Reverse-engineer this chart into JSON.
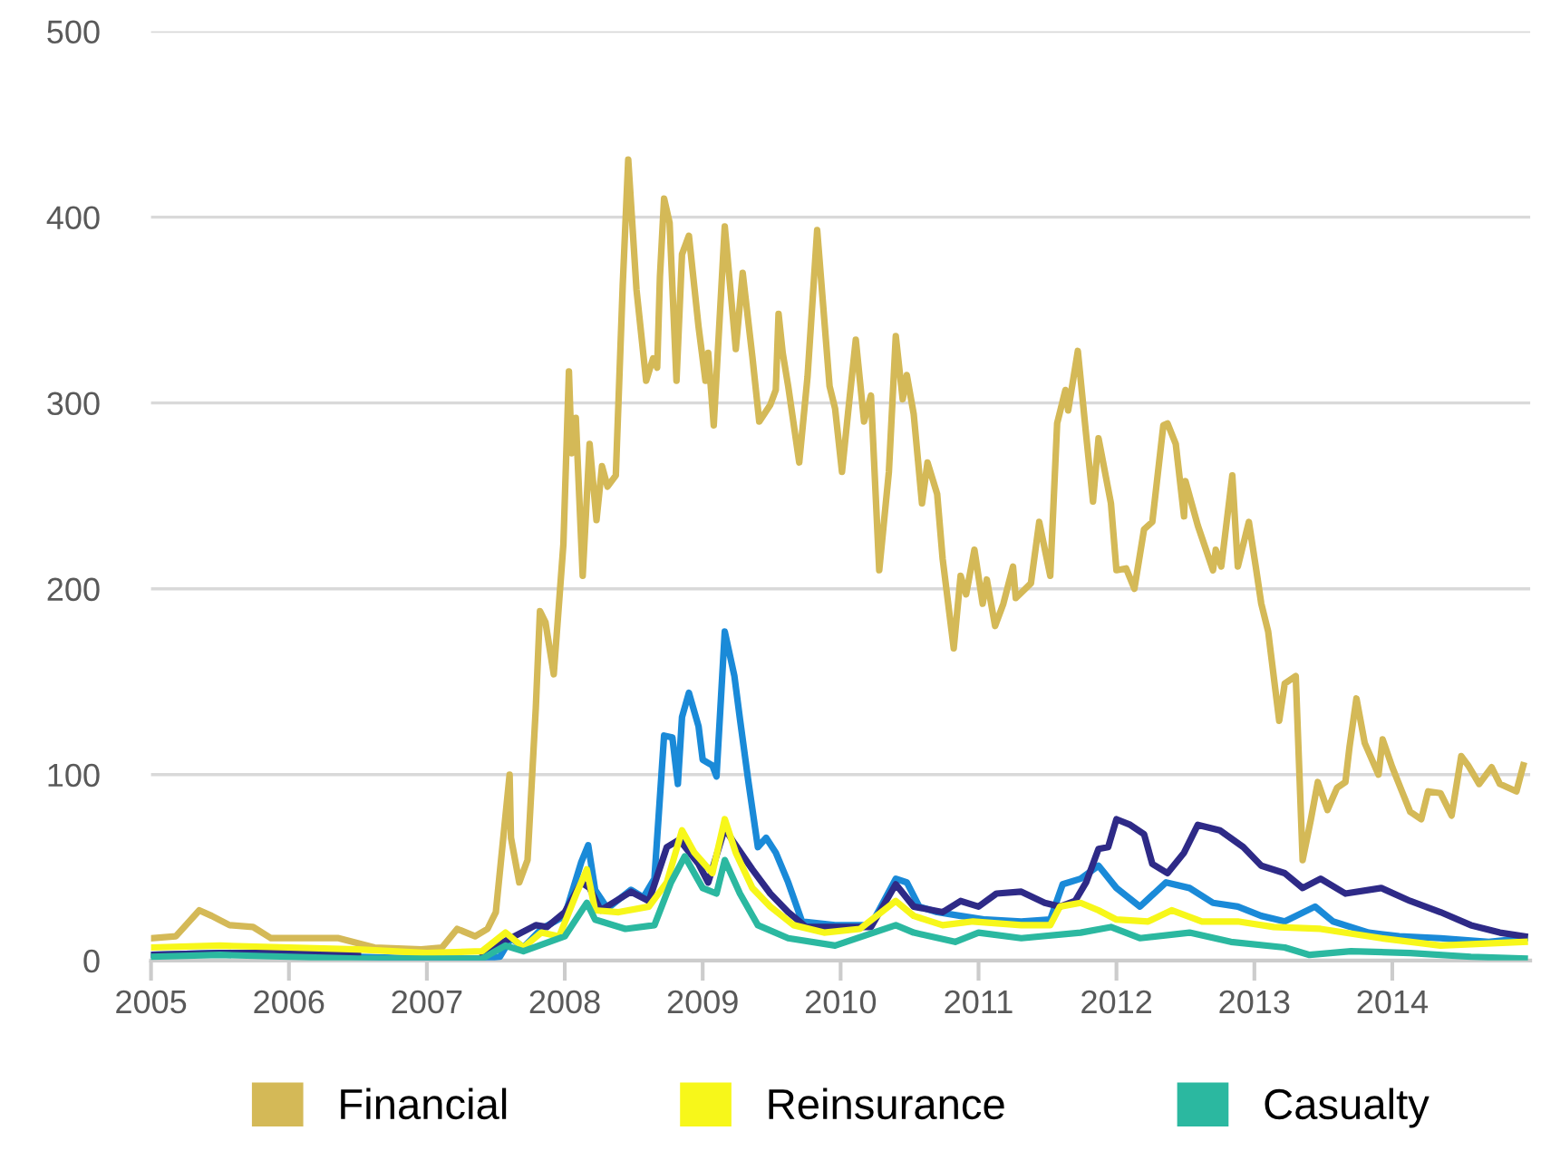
{
  "chart_data": {
    "type": "line",
    "xlim": [
      2005,
      2015
    ],
    "xticks": [
      2005,
      2006,
      2007,
      2008,
      2009,
      2010,
      2011,
      2012,
      2013,
      2014
    ],
    "ylim": [
      0,
      500
    ],
    "yticks": [
      0,
      100,
      200,
      300,
      400,
      500
    ],
    "grid": "y",
    "legend": "bottom",
    "marker": "none",
    "line_style": "solid",
    "series": [
      {
        "color": "#d4b957",
        "name": "Financial",
        "x": [
          2005.0,
          2005.18,
          2005.35,
          2005.44,
          2005.57,
          2005.74,
          2005.87,
          2006.1,
          2006.36,
          2006.62,
          2006.96,
          2007.11,
          2007.22,
          2007.35,
          2007.44,
          2007.5,
          2007.6,
          2007.61,
          2007.67,
          2007.73,
          2007.79,
          2007.82,
          2007.86,
          2007.92,
          2007.99,
          2008.03,
          2008.05,
          2008.08,
          2008.13,
          2008.18,
          2008.23,
          2008.27,
          2008.31,
          2008.37,
          2008.42,
          2008.46,
          2008.52,
          2008.59,
          2008.64,
          2008.67,
          2008.69,
          2008.72,
          2008.76,
          2008.81,
          2008.85,
          2008.9,
          2008.97,
          2009.02,
          2009.04,
          2009.08,
          2009.16,
          2009.24,
          2009.29,
          2009.36,
          2009.41,
          2009.49,
          2009.53,
          2009.55,
          2009.58,
          2009.62,
          2009.7,
          2009.76,
          2009.83,
          2009.92,
          2009.96,
          2010.01,
          2010.06,
          2010.11,
          2010.17,
          2010.22,
          2010.28,
          2010.35,
          2010.4,
          2010.45,
          2010.48,
          2010.53,
          2010.59,
          2010.63,
          2010.7,
          2010.74,
          2010.82,
          2010.87,
          2010.91,
          2010.97,
          2011.03,
          2011.06,
          2011.12,
          2011.18,
          2011.25,
          2011.27,
          2011.38,
          2011.44,
          2011.52,
          2011.57,
          2011.63,
          2011.65,
          2011.72,
          2011.78,
          2011.83,
          2011.87,
          2011.96,
          2012.0,
          2012.07,
          2012.13,
          2012.2,
          2012.26,
          2012.34,
          2012.37,
          2012.43,
          2012.49,
          2012.5,
          2012.59,
          2012.7,
          2012.72,
          2012.76,
          2012.84,
          2012.88,
          2012.96,
          2013.01,
          2013.05,
          2013.1,
          2013.18,
          2013.22,
          2013.3,
          2013.35,
          2013.41,
          2013.46,
          2013.53,
          2013.6,
          2013.66,
          2013.69,
          2013.74,
          2013.8,
          2013.9,
          2013.93,
          2014.0,
          2014.07,
          2014.13,
          2014.21,
          2014.26,
          2014.35,
          2014.43,
          2014.5,
          2014.55,
          2014.63,
          2014.72,
          2014.78,
          2014.9,
          2014.95
        ],
        "values": [
          12,
          13,
          27,
          24,
          19,
          18,
          12,
          12,
          12,
          7,
          6,
          7,
          17,
          13,
          17,
          26,
          100,
          66,
          42,
          54,
          136,
          188,
          182,
          154,
          224,
          317,
          273,
          292,
          207,
          278,
          237,
          266,
          255,
          261,
          363,
          431,
          361,
          312,
          324,
          319,
          368,
          410,
          397,
          312,
          380,
          390,
          341,
          312,
          327,
          288,
          395,
          329,
          370,
          325,
          290,
          299,
          307,
          348,
          327,
          309,
          268,
          314,
          393,
          309,
          297,
          263,
          299,
          334,
          290,
          304,
          210,
          263,
          336,
          302,
          315,
          294,
          246,
          268,
          251,
          216,
          168,
          207,
          197,
          221,
          192,
          205,
          180,
          192,
          212,
          195,
          203,
          236,
          207,
          289,
          307,
          296,
          328,
          283,
          247,
          281,
          246,
          210,
          211,
          200,
          232,
          236,
          288,
          289,
          278,
          239,
          258,
          234,
          210,
          221,
          212,
          261,
          212,
          236,
          212,
          192,
          177,
          129,
          149,
          153,
          54,
          76,
          96,
          81,
          93,
          96,
          115,
          141,
          117,
          100,
          119,
          104,
          91,
          80,
          76,
          91,
          90,
          78,
          110,
          105,
          95,
          104,
          95,
          91,
          105
        ]
      },
      {
        "color": "#1a8ad8",
        "x": [
          2005.0,
          2005.5,
          2006.0,
          2006.5,
          2007.0,
          2007.4,
          2007.53,
          2007.61,
          2007.7,
          2007.83,
          2008.0,
          2008.12,
          2008.17,
          2008.22,
          2008.31,
          2008.48,
          2008.57,
          2008.65,
          2008.72,
          2008.78,
          2008.82,
          2008.85,
          2008.9,
          2008.97,
          2009.0,
          2009.07,
          2009.1,
          2009.16,
          2009.23,
          2009.27,
          2009.33,
          2009.4,
          2009.46,
          2009.53,
          2009.62,
          2009.72,
          2009.96,
          2010.22,
          2010.4,
          2010.48,
          2010.57,
          2010.7,
          2010.87,
          2011.05,
          2011.31,
          2011.52,
          2011.61,
          2011.74,
          2011.87,
          2012.0,
          2012.17,
          2012.36,
          2012.53,
          2012.7,
          2012.88,
          2013.05,
          2013.22,
          2013.44,
          2013.57,
          2013.83,
          2014.05,
          2014.35,
          2014.7,
          2014.96
        ],
        "values": [
          3,
          4,
          3,
          2,
          1,
          1,
          2,
          12,
          7,
          17,
          24,
          53,
          62,
          38,
          28,
          38,
          34,
          44,
          121,
          120,
          95,
          131,
          144,
          126,
          108,
          105,
          99,
          177,
          153,
          130,
          97,
          61,
          66,
          58,
          42,
          21,
          19,
          19,
          44,
          42,
          29,
          26,
          24,
          22,
          21,
          22,
          41,
          44,
          51,
          39,
          29,
          42,
          39,
          31,
          29,
          24,
          21,
          29,
          21,
          15,
          13,
          12,
          10,
          12
        ]
      },
      {
        "color": "#2e2a87",
        "x": [
          2005.0,
          2005.5,
          2006.0,
          2006.5,
          2007.0,
          2007.4,
          2007.79,
          2007.87,
          2008.0,
          2008.12,
          2008.18,
          2008.26,
          2008.48,
          2008.61,
          2008.74,
          2008.83,
          2008.97,
          2009.04,
          2009.16,
          2009.23,
          2009.36,
          2009.49,
          2009.62,
          2009.75,
          2009.96,
          2010.22,
          2010.4,
          2010.53,
          2010.74,
          2010.87,
          2011.0,
          2011.13,
          2011.31,
          2011.48,
          2011.59,
          2011.7,
          2011.78,
          2011.87,
          2011.94,
          2012.0,
          2012.1,
          2012.2,
          2012.26,
          2012.37,
          2012.49,
          2012.59,
          2012.75,
          2012.92,
          2013.05,
          2013.22,
          2013.35,
          2013.48,
          2013.66,
          2013.92,
          2014.13,
          2014.35,
          2014.57,
          2014.78,
          2014.96
        ],
        "values": [
          3,
          4,
          4,
          3,
          null,
          4,
          19,
          18,
          26,
          42,
          39,
          27,
          37,
          32,
          61,
          65,
          52,
          42,
          71,
          63,
          49,
          36,
          26,
          18,
          18,
          18,
          41,
          29,
          26,
          32,
          29,
          36,
          37,
          31,
          29,
          32,
          42,
          60,
          61,
          76,
          73,
          68,
          52,
          47,
          58,
          73,
          70,
          61,
          51,
          47,
          39,
          44,
          36,
          39,
          32,
          26,
          19,
          15,
          13
        ]
      },
      {
        "color": "#f7f71a",
        "name": "Reinsurance",
        "x": [
          2005.0,
          2005.5,
          2006.0,
          2006.5,
          2007.0,
          2007.4,
          2007.57,
          2007.7,
          2007.83,
          2007.96,
          2008.09,
          2008.16,
          2008.22,
          2008.39,
          2008.61,
          2008.74,
          2008.85,
          2008.94,
          2009.07,
          2009.16,
          2009.24,
          2009.36,
          2009.49,
          2009.66,
          2009.88,
          2010.14,
          2010.4,
          2010.53,
          2010.74,
          2010.96,
          2011.31,
          2011.52,
          2011.59,
          2011.74,
          2011.87,
          2012.0,
          2012.23,
          2012.4,
          2012.62,
          2012.88,
          2013.14,
          2013.48,
          2013.92,
          2014.35,
          2014.96
        ],
        "values": [
          7,
          8,
          7,
          6,
          4,
          5,
          15,
          7,
          15,
          13,
          37,
          49,
          27,
          26,
          29,
          42,
          70,
          58,
          47,
          76,
          58,
          39,
          29,
          19,
          15,
          17,
          32,
          24,
          19,
          21,
          19,
          19,
          29,
          31,
          27,
          22,
          21,
          27,
          21,
          21,
          18,
          17,
          12,
          8,
          10
        ]
      },
      {
        "color": "#2bb8a0",
        "name": "Casualty",
        "x": [
          2005.0,
          2005.5,
          2006.0,
          2006.5,
          2007.0,
          2007.4,
          2007.57,
          2007.7,
          2008.0,
          2008.16,
          2008.22,
          2008.44,
          2008.65,
          2008.77,
          2008.87,
          2009.0,
          2009.1,
          2009.16,
          2009.27,
          2009.4,
          2009.62,
          2009.96,
          2010.4,
          2010.53,
          2010.83,
          2011.0,
          2011.31,
          2011.74,
          2011.96,
          2012.17,
          2012.53,
          2012.83,
          2013.22,
          2013.4,
          2013.7,
          2014.13,
          2014.57,
          2014.96
        ],
        "values": [
          2,
          3,
          2,
          1,
          1,
          1,
          8,
          5,
          13,
          31,
          22,
          17,
          19,
          42,
          56,
          39,
          36,
          54,
          36,
          19,
          12,
          8,
          19,
          15,
          10,
          15,
          12,
          15,
          18,
          12,
          15,
          10,
          7,
          3,
          5,
          4,
          2,
          1
        ]
      }
    ]
  }
}
